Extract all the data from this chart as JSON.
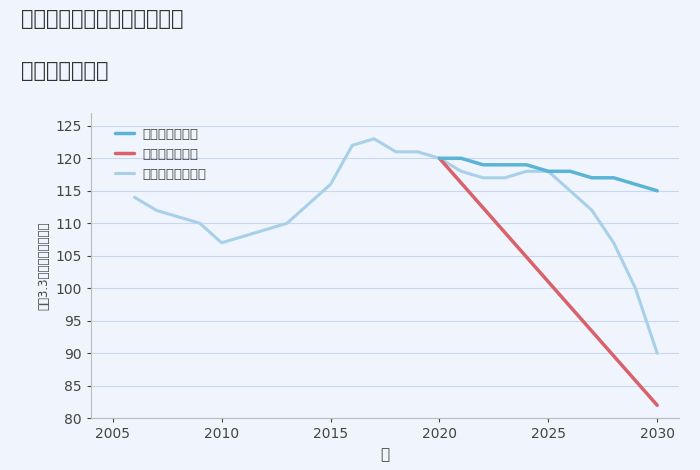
{
  "title_line1": "兵庫県西宮市甲子園一番町の",
  "title_line2": "土地の価格推移",
  "xlabel": "年",
  "ylabel": "坪（3.3㎡）単価（万円）",
  "ylim": [
    80,
    127
  ],
  "yticks": [
    80,
    85,
    90,
    95,
    100,
    105,
    110,
    115,
    120,
    125
  ],
  "xlim": [
    2004,
    2031
  ],
  "xticks": [
    2005,
    2010,
    2015,
    2020,
    2025,
    2030
  ],
  "background_color": "#f0f4fc",
  "plot_background": "#f0f4fc",
  "grid_color": "#c8d8f0",
  "normal_scenario": {
    "years": [
      2006,
      2007,
      2008,
      2009,
      2010,
      2011,
      2012,
      2013,
      2014,
      2015,
      2016,
      2017,
      2018,
      2019,
      2020,
      2021,
      2022,
      2023,
      2024,
      2025,
      2026,
      2027,
      2028,
      2029,
      2030
    ],
    "values": [
      114,
      112,
      111,
      110,
      107,
      108,
      109,
      110,
      113,
      116,
      122,
      123,
      121,
      121,
      120,
      118,
      117,
      117,
      118,
      118,
      115,
      112,
      107,
      100,
      90
    ],
    "color": "#a8d0e8",
    "linewidth": 2.2,
    "label": "ノーマルシナリオ"
  },
  "good_scenario": {
    "years": [
      2020,
      2021,
      2022,
      2023,
      2024,
      2025,
      2026,
      2027,
      2028,
      2029,
      2030
    ],
    "values": [
      120,
      120,
      119,
      119,
      119,
      118,
      118,
      117,
      117,
      116,
      115
    ],
    "color": "#5ab4d6",
    "linewidth": 2.5,
    "label": "グッドシナリオ"
  },
  "bad_scenario": {
    "years": [
      2020,
      2030
    ],
    "values": [
      120,
      82
    ],
    "color": "#d9626a",
    "linewidth": 2.5,
    "label": "バッドシナリオ"
  }
}
